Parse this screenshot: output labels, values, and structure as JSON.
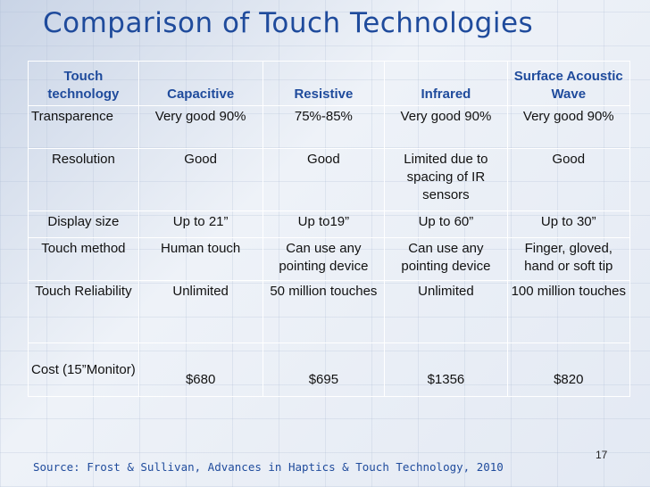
{
  "slide": {
    "title": "Comparison of Touch Technologies",
    "page_number": "17",
    "source": "Source: Frost & Sullivan, Advances in Haptics & Touch Technology, 2010"
  },
  "table": {
    "headers": [
      "Touch technology",
      "Capacitive",
      "Resistive",
      "Infrared",
      "Surface Acoustic Wave"
    ],
    "rows": [
      {
        "label": "Transparence",
        "cells": [
          "Very good 90%",
          "75%-85%",
          "Very good 90%",
          "Very good  90%"
        ]
      },
      {
        "label": "Resolution",
        "cells": [
          "Good",
          "Good",
          "Limited due to spacing of IR sensors",
          "Good"
        ]
      },
      {
        "label": "Display size",
        "cells": [
          "Up to 21”",
          "Up to19”",
          "Up to 60”",
          "Up to 30”"
        ]
      },
      {
        "label": "Touch method",
        "cells": [
          "Human touch",
          "Can use any pointing device",
          "Can use any pointing device",
          "Finger, gloved, hand or soft tip"
        ]
      },
      {
        "label": "Touch Reliability",
        "cells": [
          "Unlimited",
          "50 million touches",
          "Unlimited",
          "100 million touches"
        ]
      },
      {
        "label": "Cost (15”Monitor)",
        "cells": [
          "$680",
          "$695",
          "$1356",
          "$820"
        ]
      }
    ]
  },
  "colors": {
    "title": "#1f4b9c",
    "header_text": "#1f4b9c",
    "body_text": "#111111",
    "background": "#dfe6f1"
  }
}
